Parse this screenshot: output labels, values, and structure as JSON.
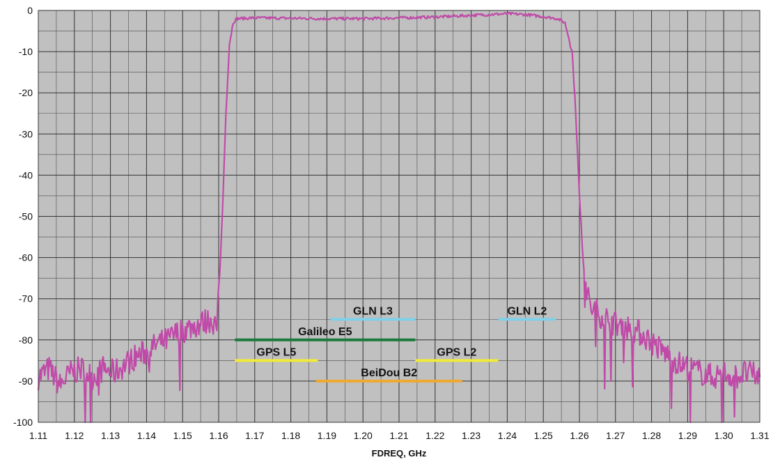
{
  "chart_data": {
    "type": "line",
    "title": "",
    "xlabel": "FDREQ, GHz",
    "ylabel": "",
    "xlim": [
      1.11,
      1.31
    ],
    "ylim": [
      -100,
      0
    ],
    "grid": true,
    "plot_background": "#c0c0c0",
    "series_color": "#c04aa8",
    "x_ticks": [
      "1.11",
      "1.12",
      "1.13",
      "1.14",
      "1.15",
      "1.16",
      "1.17",
      "1.18",
      "1.19",
      "1.20",
      "1.21",
      "1.22",
      "1.23",
      "1.24",
      "1.25",
      "1.26",
      "1.27",
      "1.28",
      "1.29",
      "1.30",
      "1.31"
    ],
    "y_ticks": [
      "0",
      "-10",
      "-20",
      "-30",
      "-40",
      "-50",
      "-60",
      "-70",
      "-80",
      "-90",
      "-100"
    ],
    "series": [
      {
        "points": [
          [
            1.11,
            -89
          ],
          [
            1.113,
            -87
          ],
          [
            1.116,
            -91
          ],
          [
            1.119,
            -88
          ],
          [
            1.122,
            -87
          ],
          [
            1.125,
            -89
          ],
          [
            1.128,
            -87
          ],
          [
            1.131,
            -88
          ],
          [
            1.134,
            -86
          ],
          [
            1.137,
            -84
          ],
          [
            1.14,
            -83
          ],
          [
            1.143,
            -81
          ],
          [
            1.146,
            -80
          ],
          [
            1.149,
            -78
          ],
          [
            1.152,
            -77
          ],
          [
            1.155,
            -76
          ],
          [
            1.158,
            -75
          ],
          [
            1.1595,
            -77
          ],
          [
            1.16,
            -70
          ],
          [
            1.161,
            -50
          ],
          [
            1.162,
            -25
          ],
          [
            1.163,
            -8
          ],
          [
            1.164,
            -3
          ],
          [
            1.165,
            -2
          ],
          [
            1.17,
            -1.8
          ],
          [
            1.18,
            -1.9
          ],
          [
            1.19,
            -2
          ],
          [
            1.2,
            -2
          ],
          [
            1.21,
            -1.8
          ],
          [
            1.22,
            -1.6
          ],
          [
            1.23,
            -1.2
          ],
          [
            1.24,
            -0.8
          ],
          [
            1.245,
            -1
          ],
          [
            1.25,
            -1.5
          ],
          [
            1.254,
            -2
          ],
          [
            1.256,
            -3
          ],
          [
            1.258,
            -10
          ],
          [
            1.259,
            -25
          ],
          [
            1.26,
            -45
          ],
          [
            1.261,
            -60
          ],
          [
            1.262,
            -68
          ],
          [
            1.263,
            -72
          ],
          [
            1.266,
            -74
          ],
          [
            1.27,
            -76
          ],
          [
            1.274,
            -77
          ],
          [
            1.278,
            -79
          ],
          [
            1.282,
            -82
          ],
          [
            1.285,
            -84
          ],
          [
            1.288,
            -86
          ],
          [
            1.291,
            -87
          ],
          [
            1.294,
            -88
          ],
          [
            1.297,
            -89
          ],
          [
            1.3,
            -88
          ],
          [
            1.303,
            -89
          ],
          [
            1.306,
            -88
          ],
          [
            1.31,
            -89
          ]
        ]
      }
    ],
    "bands": [
      {
        "label": "GLN L3",
        "x_start": 1.191,
        "x_end": 1.2145,
        "y": -75,
        "color": "#7fd0e8"
      },
      {
        "label": "GLN L2",
        "x_start": 1.2375,
        "x_end": 1.2535,
        "y": -75,
        "color": "#7fd0e8"
      },
      {
        "label": "Galileo E5",
        "x_start": 1.1645,
        "x_end": 1.2145,
        "y": -80,
        "color": "#1a7a3a"
      },
      {
        "label": "GPS L5",
        "x_start": 1.1645,
        "x_end": 1.1875,
        "y": -85,
        "color": "#f0ea3a"
      },
      {
        "label": "GPS L2",
        "x_start": 1.2145,
        "x_end": 1.2375,
        "y": -85,
        "color": "#f0ea3a"
      },
      {
        "label": "BeiDou B2",
        "x_start": 1.187,
        "x_end": 1.2275,
        "y": -90,
        "color": "#f0a830"
      }
    ]
  }
}
